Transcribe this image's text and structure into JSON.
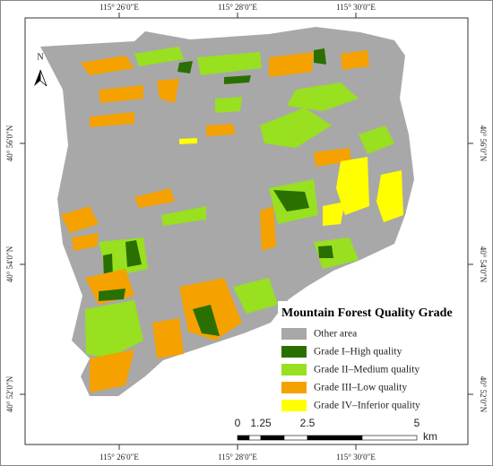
{
  "map": {
    "north": "N",
    "top_labels": [
      "115° 26′0″E",
      "115° 28′0″E",
      "115° 30′0″E"
    ],
    "bottom_labels": [
      "115° 26′0″E",
      "115° 28′0″E",
      "115° 30′0″E"
    ],
    "left_labels": [
      "40° 56′0″N",
      "40° 54′0″N",
      "40° 52′0″N"
    ],
    "right_labels": [
      "40° 56′0″N",
      "40° 54′0″N",
      "40° 52′0″N"
    ],
    "legend_title": "Mountain Forest Quality Grade",
    "legend": [
      {
        "label": "Other area",
        "color": "#a8a8a8"
      },
      {
        "label": "Grade I–High quality",
        "color": "#2a7000"
      },
      {
        "label": "Grade II–Medium quality",
        "color": "#98e020"
      },
      {
        "label": "Grade III–Low quality",
        "color": "#f5a100"
      },
      {
        "label": "Grade IV–Inferior quality",
        "color": "#ffff00"
      }
    ],
    "scale_ticks": [
      "0",
      "1.25",
      "2.5",
      "5"
    ],
    "scale_unit": "km"
  }
}
